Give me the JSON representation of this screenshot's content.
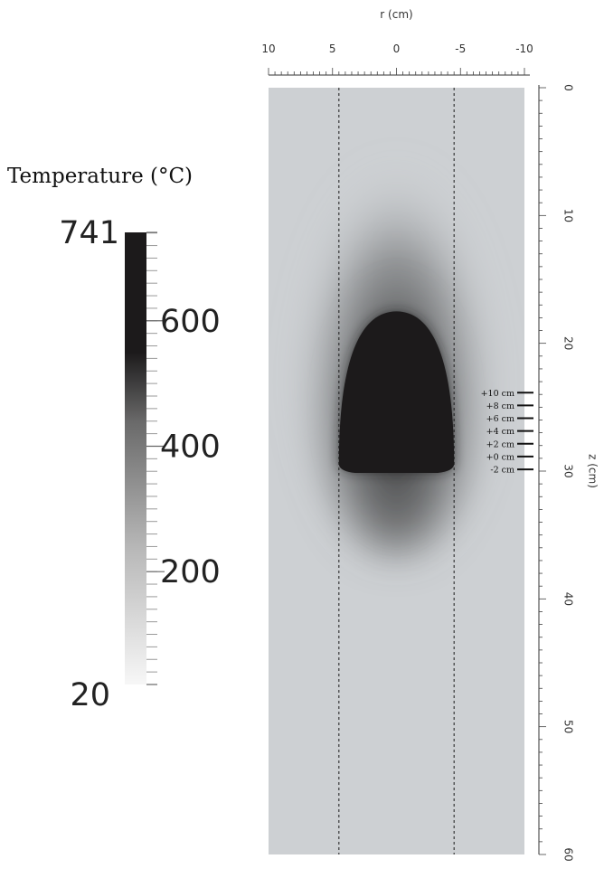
{
  "chart_data": {
    "type": "heatmap",
    "title": "",
    "colorbar": {
      "title": "Temperature (°C)",
      "min": 20,
      "max": 741,
      "saturation_value": 550,
      "tick_labels": [
        "741",
        "600",
        "400",
        "200",
        "20"
      ],
      "tick_values": [
        741,
        600,
        400,
        200,
        20
      ]
    },
    "x_axis": {
      "label": "r (cm)",
      "position": "top",
      "range": [
        10,
        -10
      ],
      "tick_values": [
        10,
        5,
        0,
        -5,
        -10
      ],
      "tick_labels": [
        "10",
        "5",
        "0",
        "-5",
        "-10"
      ]
    },
    "z_axis": {
      "label": "z (cm)",
      "position": "right",
      "range": [
        0,
        60
      ],
      "tick_values": [
        0,
        10,
        20,
        30,
        40,
        50,
        60
      ],
      "tick_labels": [
        "0",
        "10",
        "20",
        "30",
        "40",
        "50",
        "60"
      ]
    },
    "reference_lines_r": [
      4.5,
      -4.5
    ],
    "hot_region": {
      "r_half_width": 4.5,
      "z_top": 17.5,
      "z_bottom": 30
    },
    "annotations": [
      {
        "label": "+10 cm",
        "z": 24.5
      },
      {
        "label": "+8 cm",
        "z": 25.5
      },
      {
        "label": "+6 cm",
        "z": 26.5
      },
      {
        "label": "+4 cm",
        "z": 27.5
      },
      {
        "label": "+2 cm",
        "z": 28.5
      },
      {
        "label": "+0 cm",
        "z": 29.5
      },
      {
        "label": "-2 cm",
        "z": 30.5
      }
    ],
    "colors": {
      "hot": "#1c1a1b",
      "ambient": "#cdd0d3"
    }
  }
}
